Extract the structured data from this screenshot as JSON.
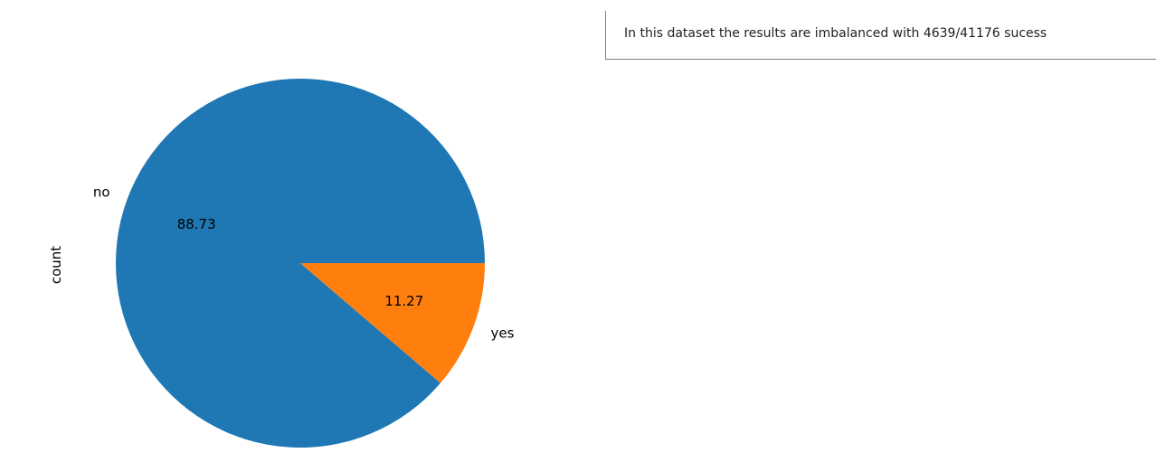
{
  "chart_data": {
    "type": "pie",
    "ylabel": "count",
    "slices": [
      {
        "label": "no",
        "value": 88.73,
        "pct_label": "88.73",
        "color": "#1f77b4"
      },
      {
        "label": "yes",
        "value": 11.27,
        "pct_label": "11.27",
        "color": "#ff7f0e"
      }
    ],
    "start_angle": 0,
    "direction": "counterclockwise"
  },
  "annotation": {
    "text": "In this dataset the results are imbalanced with 4639/41176 sucess"
  }
}
